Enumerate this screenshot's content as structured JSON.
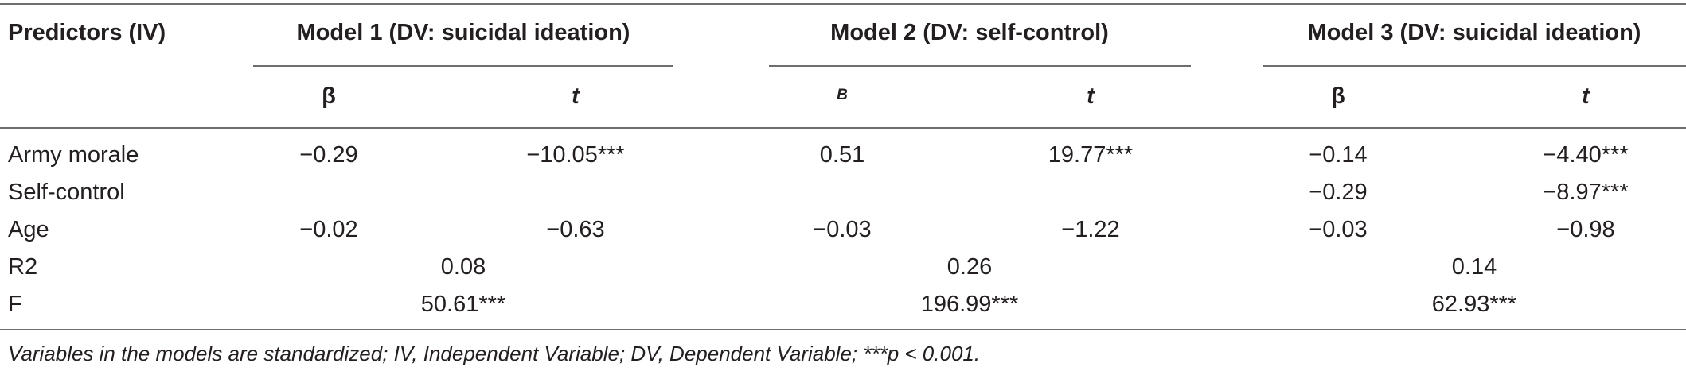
{
  "table": {
    "header": {
      "predictors": "Predictors (IV)",
      "model1": "Model 1 (DV: suicidal ideation)",
      "model2": "Model 2 (DV: self-control)",
      "model3": "Model 3 (DV: suicidal ideation)",
      "m1_beta": "β",
      "m1_t": "t",
      "m2_beta": "B",
      "m2_t": "t",
      "m3_beta": "β",
      "m3_t": "t"
    },
    "rows": [
      {
        "label": "Army morale",
        "m1_beta": "−0.29",
        "m1_t": "−10.05***",
        "m2_beta": "0.51",
        "m2_t": "19.77***",
        "m3_beta": "−0.14",
        "m3_t": "−4.40***"
      },
      {
        "label": "Self-control",
        "m1_beta": "",
        "m1_t": "",
        "m2_beta": "",
        "m2_t": "",
        "m3_beta": "−0.29",
        "m3_t": "−8.97***"
      },
      {
        "label": "Age",
        "m1_beta": "−0.02",
        "m1_t": "−0.63",
        "m2_beta": "−0.03",
        "m2_t": "−1.22",
        "m3_beta": "−0.03",
        "m3_t": "−0.98"
      }
    ],
    "summary": [
      {
        "label": "R2",
        "m1": "0.08",
        "m2": "0.26",
        "m3": "0.14"
      },
      {
        "label": "F",
        "m1": "50.61***",
        "m2": "196.99***",
        "m3": "62.93***"
      }
    ],
    "footnote": "Variables in the models are standardized; IV, Independent Variable; DV, Dependent Variable; ***p < 0.001."
  }
}
